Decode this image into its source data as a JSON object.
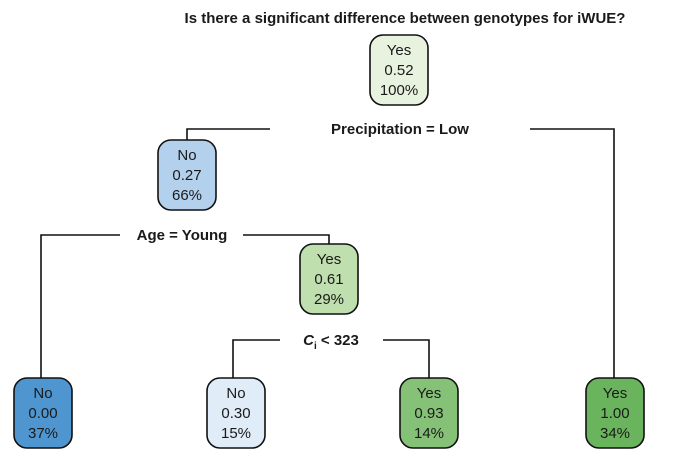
{
  "title": "Is there a significant difference between genotypes for iWUE?",
  "nodes": [
    {
      "label": "Yes",
      "value": "0.52",
      "percent": "100%",
      "color": "#e8f3df"
    },
    {
      "label": "No",
      "value": "0.27",
      "percent": "66%",
      "color": "#b3d1ec"
    },
    {
      "label": "Yes",
      "value": "0.61",
      "percent": "29%",
      "color": "#bfdfae"
    },
    {
      "label": "No",
      "value": "0.00",
      "percent": "37%",
      "color": "#4f96d0"
    },
    {
      "label": "No",
      "value": "0.30",
      "percent": "15%",
      "color": "#e0ecf7"
    },
    {
      "label": "Yes",
      "value": "0.93",
      "percent": "14%",
      "color": "#85c278"
    },
    {
      "label": "Yes",
      "value": "1.00",
      "percent": "34%",
      "color": "#6ab45e"
    }
  ],
  "splits": [
    {
      "text": "Precipitation = Low"
    },
    {
      "text": "Age = Young"
    },
    {
      "variable": "C",
      "subscript": "i",
      "condition": " < 323"
    }
  ]
}
